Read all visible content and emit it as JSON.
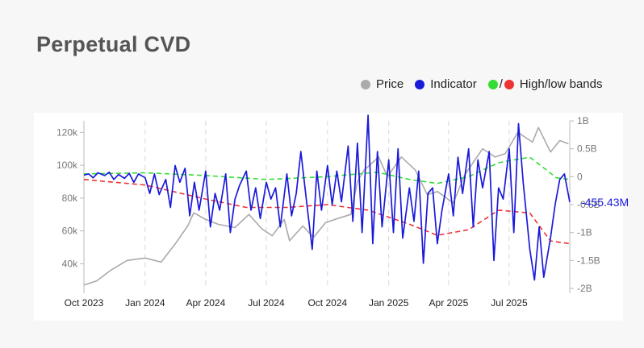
{
  "title": "Perpetual CVD",
  "legend": {
    "price": {
      "label": "Price",
      "color": "#aaaaaa",
      "icon": "circle-icon"
    },
    "indicator": {
      "label": "Indicator",
      "color": "#1a1adb",
      "icon": "circle-icon"
    },
    "bands": {
      "label": "High/low bands",
      "slash": "/",
      "high_color": "#33dd33",
      "low_color": "#ee3333",
      "icon": "circle-icon"
    }
  },
  "last_value_label": "-455.43M",
  "chart_data": {
    "type": "line",
    "title": "Perpetual CVD",
    "x_ticks": [
      "Oct 2023",
      "Jan 2024",
      "Apr 2024",
      "Jul 2024",
      "Oct 2024",
      "Jan 2025",
      "Apr 2025",
      "Jul 2025"
    ],
    "x_range": [
      "2023-10-01",
      "2025-09-30"
    ],
    "y_left": {
      "label": "",
      "ticks": [
        "40k",
        "60k",
        "80k",
        "100k",
        "120k"
      ],
      "range": [
        25000,
        127000
      ]
    },
    "y_right": {
      "label": "",
      "ticks": [
        "1B",
        "0.5B",
        "0",
        "-0.5B",
        "-1B",
        "-1.5B",
        "-2B"
      ],
      "range": [
        -2.0,
        1.0
      ],
      "unit": "billions"
    },
    "grid": "vertical dashed lines at x ticks",
    "legend_position": "top-right",
    "series": [
      {
        "name": "Price",
        "axis": "left",
        "color": "#aaaaaa",
        "points": [
          [
            "2023-10-01",
            27000
          ],
          [
            "2023-10-20",
            29500
          ],
          [
            "2023-11-10",
            36000
          ],
          [
            "2023-12-05",
            42000
          ],
          [
            "2024-01-01",
            43500
          ],
          [
            "2024-01-25",
            41000
          ],
          [
            "2024-02-15",
            52000
          ],
          [
            "2024-03-05",
            63000
          ],
          [
            "2024-03-14",
            71000
          ],
          [
            "2024-04-01",
            67000
          ],
          [
            "2024-04-20",
            64000
          ],
          [
            "2024-05-15",
            62000
          ],
          [
            "2024-06-05",
            70000
          ],
          [
            "2024-06-25",
            61000
          ],
          [
            "2024-07-10",
            57000
          ],
          [
            "2024-07-28",
            67000
          ],
          [
            "2024-08-05",
            54000
          ],
          [
            "2024-08-25",
            63000
          ],
          [
            "2024-09-10",
            56000
          ],
          [
            "2024-09-28",
            65000
          ],
          [
            "2024-10-20",
            68000
          ],
          [
            "2024-11-05",
            70000
          ],
          [
            "2024-11-15",
            90000
          ],
          [
            "2024-11-25",
            97000
          ],
          [
            "2024-12-17",
            105000
          ],
          [
            "2024-12-30",
            93000
          ],
          [
            "2025-01-20",
            105000
          ],
          [
            "2025-02-10",
            97000
          ],
          [
            "2025-02-28",
            82000
          ],
          [
            "2025-03-15",
            84000
          ],
          [
            "2025-04-08",
            77000
          ],
          [
            "2025-04-25",
            94000
          ],
          [
            "2025-05-22",
            110000
          ],
          [
            "2025-06-10",
            105000
          ],
          [
            "2025-06-25",
            107000
          ],
          [
            "2025-07-14",
            120000
          ],
          [
            "2025-08-05",
            114000
          ],
          [
            "2025-08-14",
            123000
          ],
          [
            "2025-09-01",
            108000
          ],
          [
            "2025-09-15",
            115000
          ],
          [
            "2025-09-28",
            113000
          ]
        ]
      },
      {
        "name": "Indicator",
        "axis": "right",
        "color": "#1a1adb",
        "points": [
          [
            "2023-10-01",
            0.03
          ],
          [
            "2023-10-08",
            0.05
          ],
          [
            "2023-10-15",
            -0.02
          ],
          [
            "2023-10-22",
            0.07
          ],
          [
            "2023-11-01",
            0.02
          ],
          [
            "2023-11-08",
            0.08
          ],
          [
            "2023-11-15",
            -0.05
          ],
          [
            "2023-11-22",
            0.04
          ],
          [
            "2023-12-01",
            -0.03
          ],
          [
            "2023-12-08",
            0.06
          ],
          [
            "2023-12-15",
            -0.1
          ],
          [
            "2023-12-22",
            0.05
          ],
          [
            "2024-01-01",
            -0.02
          ],
          [
            "2024-01-08",
            -0.3
          ],
          [
            "2024-01-15",
            0.05
          ],
          [
            "2024-01-22",
            -0.32
          ],
          [
            "2024-02-01",
            -0.05
          ],
          [
            "2024-02-08",
            -0.55
          ],
          [
            "2024-02-15",
            0.2
          ],
          [
            "2024-02-22",
            -0.1
          ],
          [
            "2024-03-01",
            0.15
          ],
          [
            "2024-03-08",
            -0.7
          ],
          [
            "2024-03-15",
            -0.1
          ],
          [
            "2024-03-22",
            -0.6
          ],
          [
            "2024-04-01",
            0.1
          ],
          [
            "2024-04-08",
            -0.9
          ],
          [
            "2024-04-15",
            -0.3
          ],
          [
            "2024-04-22",
            -0.6
          ],
          [
            "2024-05-01",
            0.05
          ],
          [
            "2024-05-08",
            -1.0
          ],
          [
            "2024-05-15",
            -0.4
          ],
          [
            "2024-05-22",
            -0.15
          ],
          [
            "2024-06-01",
            0.1
          ],
          [
            "2024-06-08",
            -0.6
          ],
          [
            "2024-06-15",
            -0.2
          ],
          [
            "2024-06-22",
            -0.75
          ],
          [
            "2024-07-01",
            -0.1
          ],
          [
            "2024-07-08",
            -0.4
          ],
          [
            "2024-07-15",
            -0.2
          ],
          [
            "2024-07-22",
            -0.9
          ],
          [
            "2024-08-01",
            0.05
          ],
          [
            "2024-08-08",
            -0.7
          ],
          [
            "2024-08-15",
            -0.3
          ],
          [
            "2024-08-22",
            0.45
          ],
          [
            "2024-09-01",
            -0.6
          ],
          [
            "2024-09-08",
            -1.3
          ],
          [
            "2024-09-15",
            0.1
          ],
          [
            "2024-09-22",
            -0.6
          ],
          [
            "2024-10-01",
            0.2
          ],
          [
            "2024-10-08",
            -0.5
          ],
          [
            "2024-10-15",
            0.1
          ],
          [
            "2024-10-22",
            -0.45
          ],
          [
            "2024-11-01",
            0.55
          ],
          [
            "2024-11-08",
            -0.8
          ],
          [
            "2024-11-15",
            0.6
          ],
          [
            "2024-11-22",
            -1.0
          ],
          [
            "2024-12-01",
            1.1
          ],
          [
            "2024-12-08",
            -1.2
          ],
          [
            "2024-12-15",
            0.45
          ],
          [
            "2024-12-22",
            -0.9
          ],
          [
            "2025-01-01",
            0.3
          ],
          [
            "2025-01-08",
            -1.0
          ],
          [
            "2025-01-15",
            0.5
          ],
          [
            "2025-01-22",
            -1.1
          ],
          [
            "2025-02-01",
            -0.2
          ],
          [
            "2025-02-08",
            -0.8
          ],
          [
            "2025-02-15",
            0.1
          ],
          [
            "2025-02-22",
            -1.55
          ],
          [
            "2025-03-01",
            -0.3
          ],
          [
            "2025-03-08",
            -0.2
          ],
          [
            "2025-03-15",
            -1.2
          ],
          [
            "2025-03-22",
            -0.6
          ],
          [
            "2025-04-01",
            0.05
          ],
          [
            "2025-04-08",
            -0.7
          ],
          [
            "2025-04-15",
            0.35
          ],
          [
            "2025-04-22",
            -0.3
          ],
          [
            "2025-05-01",
            0.5
          ],
          [
            "2025-05-08",
            -0.9
          ],
          [
            "2025-05-15",
            0.3
          ],
          [
            "2025-05-22",
            -0.2
          ],
          [
            "2025-06-01",
            0.45
          ],
          [
            "2025-06-08",
            -1.5
          ],
          [
            "2025-06-15",
            -0.2
          ],
          [
            "2025-06-22",
            -0.4
          ],
          [
            "2025-07-01",
            0.5
          ],
          [
            "2025-07-08",
            -1.0
          ],
          [
            "2025-07-15",
            0.95
          ],
          [
            "2025-07-22",
            -0.1
          ],
          [
            "2025-08-01",
            -1.3
          ],
          [
            "2025-08-08",
            -1.85
          ],
          [
            "2025-08-15",
            -0.9
          ],
          [
            "2025-08-22",
            -1.8
          ],
          [
            "2025-09-01",
            -1.1
          ],
          [
            "2025-09-08",
            -0.5
          ],
          [
            "2025-09-15",
            -0.05
          ],
          [
            "2025-09-22",
            0.05
          ],
          [
            "2025-09-30",
            -0.455
          ]
        ]
      },
      {
        "name": "High band",
        "axis": "right",
        "color": "#33dd33",
        "style": "dashed",
        "points": [
          [
            "2023-10-01",
            0.05
          ],
          [
            "2024-01-01",
            0.07
          ],
          [
            "2024-04-01",
            0.02
          ],
          [
            "2024-07-01",
            -0.05
          ],
          [
            "2024-10-01",
            0.0
          ],
          [
            "2024-12-15",
            0.08
          ],
          [
            "2025-02-01",
            -0.05
          ],
          [
            "2025-03-15",
            -0.12
          ],
          [
            "2025-05-01",
            0.0
          ],
          [
            "2025-06-15",
            0.25
          ],
          [
            "2025-08-01",
            0.35
          ],
          [
            "2025-09-10",
            -0.02
          ],
          [
            "2025-09-30",
            -0.05
          ]
        ]
      },
      {
        "name": "Low band",
        "axis": "right",
        "color": "#ee3333",
        "style": "dashed",
        "points": [
          [
            "2023-10-01",
            -0.05
          ],
          [
            "2024-01-01",
            -0.15
          ],
          [
            "2024-04-01",
            -0.4
          ],
          [
            "2024-06-01",
            -0.55
          ],
          [
            "2024-08-01",
            -0.55
          ],
          [
            "2024-10-01",
            -0.5
          ],
          [
            "2024-12-01",
            -0.6
          ],
          [
            "2025-02-01",
            -0.85
          ],
          [
            "2025-03-15",
            -1.05
          ],
          [
            "2025-05-01",
            -0.95
          ],
          [
            "2025-06-15",
            -0.6
          ],
          [
            "2025-08-01",
            -0.65
          ],
          [
            "2025-09-01",
            -1.15
          ],
          [
            "2025-09-30",
            -1.2
          ]
        ]
      }
    ]
  }
}
